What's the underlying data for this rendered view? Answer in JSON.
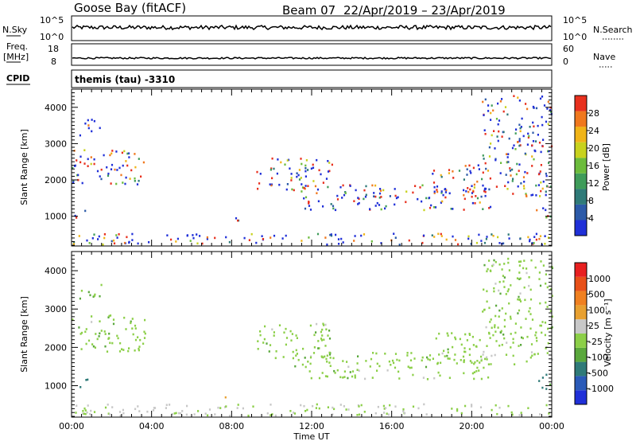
{
  "header": {
    "station": "Goose Bay (fitACF)",
    "beam": "Beam 07",
    "date_range": "22/Apr/2019 – 23/Apr/2019"
  },
  "summary_panels": {
    "nsky_label": "N.Sky",
    "nsky_ticks": [
      "10^5",
      "10^0"
    ],
    "nsearch_label": "N.Search",
    "nsearch_ticks": [
      "10^5",
      "10^0"
    ],
    "freq_label_1": "Freq.",
    "freq_label_2": "[MHz]",
    "freq_ticks": [
      "18",
      "8"
    ],
    "nave_label": "Nave",
    "nave_ticks": [
      "60",
      "0"
    ],
    "cpid_label": "CPID",
    "cpid_value": "themis (tau) -3310"
  },
  "colors": {
    "power": [
      "#2030d8",
      "#2c5aa8",
      "#2f7a78",
      "#3f9c5a",
      "#6cbc3c",
      "#c8d21e",
      "#f0b418",
      "#f0781e",
      "#e8301e"
    ],
    "velocity": [
      "#2030d8",
      "#2a5ab8",
      "#2f7a78",
      "#5aa83c",
      "#8ccf48",
      "#c8c8c8",
      "#e8a030",
      "#f08020",
      "#e85018",
      "#e82020"
    ]
  },
  "chart_data": [
    {
      "type": "heatmap",
      "title": "",
      "xlabel": "Time UT",
      "ylabel": "Slant Range [km]",
      "x_tick_labels": [
        "00:00",
        "04:00",
        "08:00",
        "12:00",
        "16:00",
        "20:00",
        "00:00"
      ],
      "xlim_hours": [
        0,
        24
      ],
      "ylim": [
        180,
        4500
      ],
      "y_ticks": [
        1000,
        2000,
        3000,
        4000
      ],
      "colorbar": {
        "label": "Power [dB]",
        "range": [
          0,
          30
        ],
        "ticks": [
          "4",
          "8",
          "12",
          "16",
          "20",
          "24",
          "28"
        ]
      },
      "bands": [
        {
          "t": [
            0,
            3.7
          ],
          "r": [
            1850,
            2820
          ],
          "v": 11
        },
        {
          "t": [
            0,
            0.8
          ],
          "r": [
            930,
            1150
          ],
          "v": 20
        },
        {
          "t": [
            0.3,
            1.5
          ],
          "r": [
            3200,
            3650
          ],
          "v": 6
        },
        {
          "t": [
            9.2,
            13
          ],
          "r": [
            1700,
            2600
          ],
          "v": 10
        },
        {
          "t": [
            11,
            21
          ],
          "r": [
            1450,
            1850
          ],
          "v": 9
        },
        {
          "t": [
            11.5,
            21
          ],
          "r": [
            1150,
            1400
          ],
          "v": 8
        },
        {
          "t": [
            18,
            24
          ],
          "r": [
            1500,
            2400
          ],
          "v": 14
        },
        {
          "t": [
            20.5,
            24
          ],
          "r": [
            2400,
            4300
          ],
          "v": 5
        },
        {
          "t": [
            23.2,
            24
          ],
          "r": [
            900,
            1300
          ],
          "v": 10
        },
        {
          "t": [
            8,
            9
          ],
          "r": [
            850,
            1000
          ],
          "v": 5
        },
        {
          "t": [
            0,
            24
          ],
          "r": [
            200,
            500
          ],
          "v": 7
        }
      ]
    },
    {
      "type": "heatmap",
      "title": "",
      "xlabel": "Time UT",
      "ylabel": "Slant Range [km]",
      "x_tick_labels": [
        "00:00",
        "04:00",
        "08:00",
        "12:00",
        "16:00",
        "20:00",
        "00:00"
      ],
      "xlim_hours": [
        0,
        24
      ],
      "ylim": [
        180,
        4500
      ],
      "y_ticks": [
        1000,
        2000,
        3000,
        4000
      ],
      "colorbar": {
        "label": "Velocity [m s⁻¹]",
        "range": [
          -1000,
          1000
        ],
        "ticks": [
          "1000",
          "500",
          "100",
          "25",
          "-25",
          "-100",
          "-500",
          "-1000"
        ]
      },
      "bands": [
        {
          "t": [
            0,
            3.7
          ],
          "r": [
            1850,
            2820
          ],
          "v": 0
        },
        {
          "t": [
            0,
            0.8
          ],
          "r": [
            930,
            1150
          ],
          "v": 120
        },
        {
          "t": [
            0.3,
            1.5
          ],
          "r": [
            3200,
            3650
          ],
          "v": 30
        },
        {
          "t": [
            9.2,
            13
          ],
          "r": [
            1700,
            2600
          ],
          "v": 0
        },
        {
          "t": [
            11,
            21
          ],
          "r": [
            1450,
            1850
          ],
          "v": 0
        },
        {
          "t": [
            11.5,
            21
          ],
          "r": [
            1150,
            1400
          ],
          "v": 0
        },
        {
          "t": [
            18,
            24
          ],
          "r": [
            1500,
            2400
          ],
          "v": 0
        },
        {
          "t": [
            20.5,
            24
          ],
          "r": [
            2400,
            4300
          ],
          "v": 0
        },
        {
          "t": [
            23.2,
            24
          ],
          "r": [
            900,
            1300
          ],
          "v": 120
        },
        {
          "t": [
            7.3,
            7.7
          ],
          "r": [
            650,
            850
          ],
          "v": -110
        },
        {
          "t": [
            0,
            24
          ],
          "r": [
            200,
            500
          ],
          "v": -30
        }
      ]
    }
  ]
}
